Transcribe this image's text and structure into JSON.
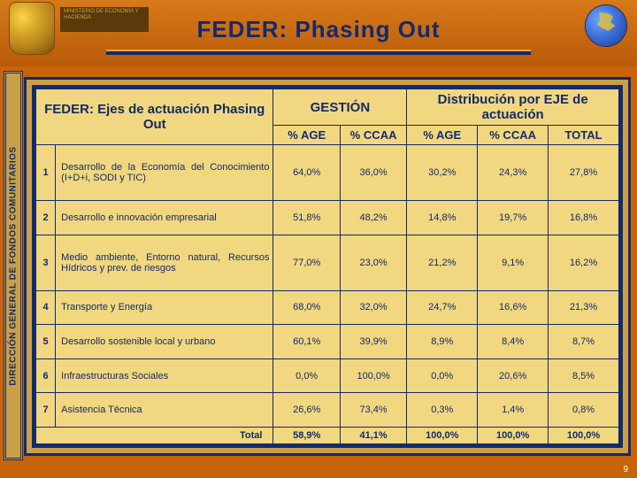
{
  "header": {
    "ministry": "MINISTERIO DE ECONOMÍA Y HACIENDA",
    "title": "FEDER: Phasing Out"
  },
  "side_label": "DIRECCIÓN GENERAL DE FONDOS COMUNITARIOS",
  "table": {
    "caption": "FEDER: Ejes de actuación Phasing Out",
    "group_headers": {
      "gestion": "GESTIÓN",
      "distribucion": "Distribución por EJE de actuación"
    },
    "sub_headers": {
      "age": "% AGE",
      "ccaa": "% CCAA",
      "total": "TOTAL"
    },
    "rows": [
      {
        "n": "1",
        "desc": "Desarrollo de la Economía del Conocimiento (I+D+i, SODI y TIC)",
        "g_age": "64,0%",
        "g_ccaa": "36,0%",
        "d_age": "30,2%",
        "d_ccaa": "24,3%",
        "d_total": "27,8%"
      },
      {
        "n": "2",
        "desc": "Desarrollo e innovación empresarial",
        "g_age": "51,8%",
        "g_ccaa": "48,2%",
        "d_age": "14,8%",
        "d_ccaa": "19,7%",
        "d_total": "16,8%"
      },
      {
        "n": "3",
        "desc": "Medio ambiente, Entorno natural, Recursos Hídricos y prev. de riesgos",
        "g_age": "77,0%",
        "g_ccaa": "23,0%",
        "d_age": "21,2%",
        "d_ccaa": "9,1%",
        "d_total": "16,2%"
      },
      {
        "n": "4",
        "desc": "Transporte y Energía",
        "g_age": "68,0%",
        "g_ccaa": "32,0%",
        "d_age": "24,7%",
        "d_ccaa": "16,6%",
        "d_total": "21,3%"
      },
      {
        "n": "5",
        "desc": "Desarrollo sostenible local y urbano",
        "g_age": "60,1%",
        "g_ccaa": "39,9%",
        "d_age": "8,9%",
        "d_ccaa": "8,4%",
        "d_total": "8,7%"
      },
      {
        "n": "6",
        "desc": "Infraestructuras Sociales",
        "g_age": "0,0%",
        "g_ccaa": "100,0%",
        "d_age": "0,0%",
        "d_ccaa": "20,6%",
        "d_total": "8,5%"
      },
      {
        "n": "7",
        "desc": "Asistencia Técnica",
        "g_age": "26,6%",
        "g_ccaa": "73,4%",
        "d_age": "0,3%",
        "d_ccaa": "1,4%",
        "d_total": "0,8%"
      }
    ],
    "totals": {
      "label": "Total",
      "g_age": "58,9%",
      "g_ccaa": "41,1%",
      "d_age": "100,0%",
      "d_ccaa": "100,0%",
      "d_total": "100,0%"
    }
  },
  "page_number": "9",
  "colors": {
    "slide_bg": "#c76409",
    "panel_bg": "#f1d77f",
    "border": "#132a6b",
    "accent": "#c9a04a"
  }
}
